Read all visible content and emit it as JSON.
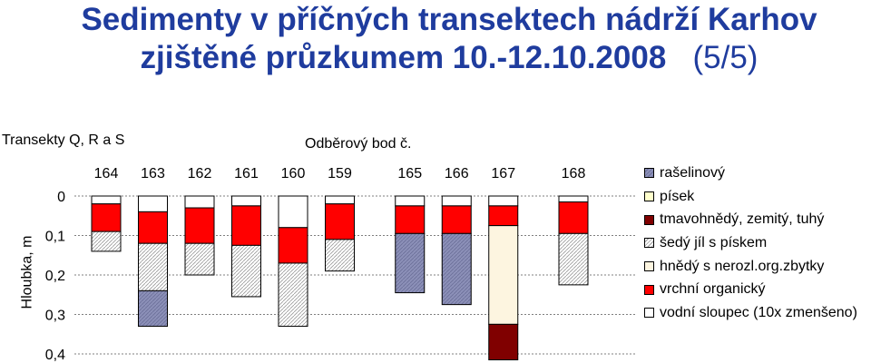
{
  "title_line1": "Sedimenty v příčných transektech nádrží Karhov",
  "title_line2": "zjištěné průzkumem 10.-12.10.2008",
  "title_suffix": "(5/5)",
  "subtitle": "Transekty Q, R a S",
  "chart_data": {
    "type": "bar",
    "orientation": "stacked-vertical-downward",
    "xlabel": "Odběrový bod č.",
    "ylabel": "Hloubka, m",
    "ylim": [
      0,
      0.4
    ],
    "yticks": [
      "0",
      "0,1",
      "0,2",
      "0,3",
      "0,4"
    ],
    "categories": [
      "164",
      "163",
      "162",
      "161",
      "160",
      "159",
      "165",
      "166",
      "167",
      "168"
    ],
    "category_positions": [
      1,
      2,
      3,
      4,
      5,
      6,
      7.5,
      8.5,
      9.5,
      11
    ],
    "legend_position": "right",
    "series": [
      {
        "name": "vodní sloupec (10x zmenšeno)",
        "color": "#ffffff",
        "pattern": "none",
        "values": [
          0.02,
          0.04,
          0.03,
          0.025,
          0.08,
          0.02,
          0.025,
          0.025,
          0.025,
          0.015
        ]
      },
      {
        "name": "vrchní organický",
        "color": "#ff0000",
        "pattern": "none",
        "values": [
          0.07,
          0.08,
          0.09,
          0.1,
          0.09,
          0.09,
          0.07,
          0.07,
          0.05,
          0.08
        ]
      },
      {
        "name": "hnědý s nerozl.org.zbytky",
        "color": "#fdf5e0",
        "pattern": "none",
        "values": [
          0,
          0,
          0,
          0,
          0,
          0,
          0,
          0,
          0.25,
          0
        ]
      },
      {
        "name": "šedý jíl s pískem",
        "color": "#ffffff",
        "pattern": "hatch",
        "values": [
          0.05,
          0.12,
          0.08,
          0.13,
          0.16,
          0.08,
          0,
          0,
          0,
          0.13
        ]
      },
      {
        "name": "tmavohnědý, zemitý, tuhý",
        "color": "#800000",
        "pattern": "none",
        "values": [
          0,
          0,
          0,
          0,
          0,
          0,
          0,
          0,
          0.09,
          0
        ]
      },
      {
        "name": "písek",
        "color": "#ffffcc",
        "pattern": "none",
        "values": [
          0,
          0,
          0,
          0,
          0,
          0,
          0,
          0,
          0,
          0
        ]
      },
      {
        "name": "rašelinový",
        "color": "#8c90b8",
        "pattern": "hatch",
        "values": [
          0,
          0.09,
          0,
          0,
          0,
          0,
          0.15,
          0.18,
          0,
          0
        ]
      }
    ],
    "legend_order": [
      "rašelinový",
      "písek",
      "tmavohnědý, zemitý, tuhý",
      "šedý jíl s pískem",
      "hnědý s nerozl.org.zbytky",
      "vrchní organický",
      "vodní sloupec (10x zmenšeno)"
    ]
  }
}
